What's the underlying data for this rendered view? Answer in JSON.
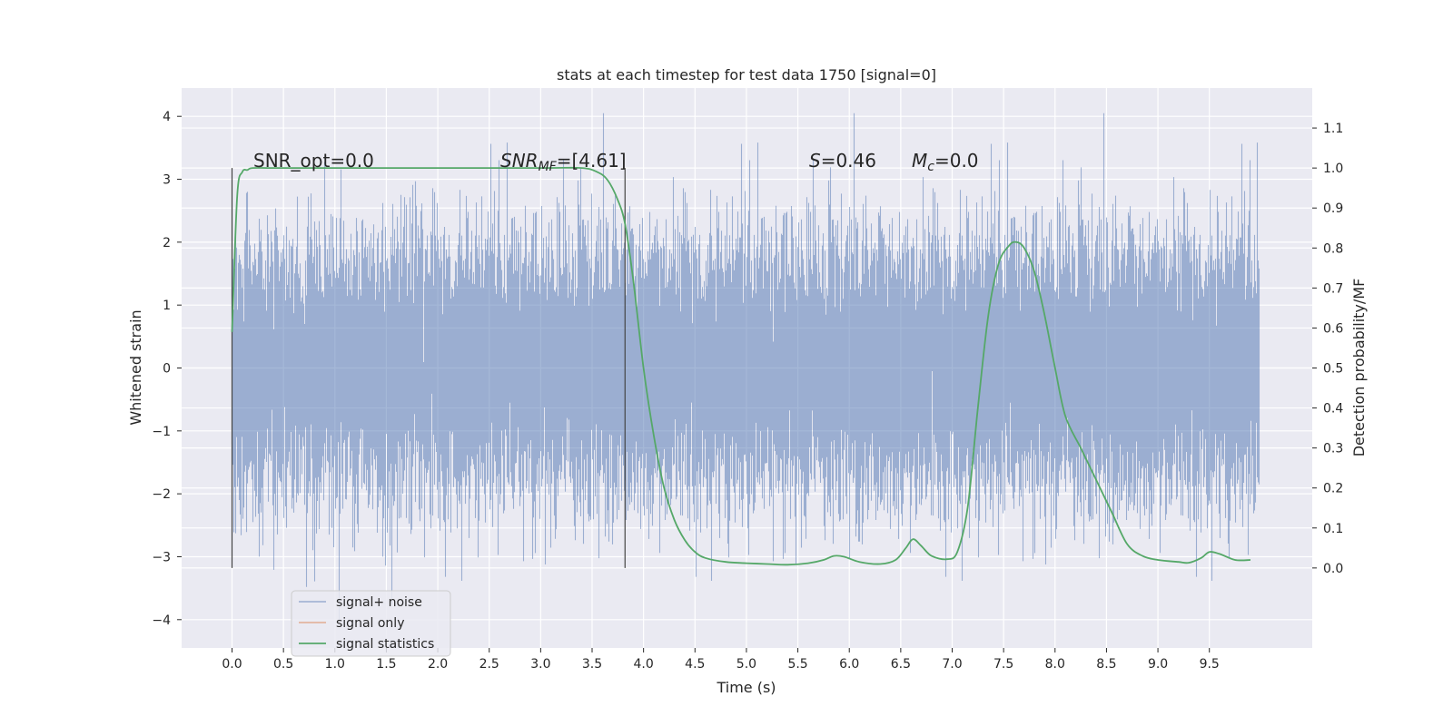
{
  "chart_data": {
    "type": "line",
    "title": "stats at each timestep for test data 1750 [signal=0]",
    "xlabel": "Time (s)",
    "ylabel_left": "Whitened strain",
    "ylabel_right": "Detection probability/MF",
    "xlim": [
      -0.49,
      10.5
    ],
    "ylim_left": [
      -4.45,
      4.45
    ],
    "ylim_right": [
      -0.2,
      1.2
    ],
    "x_ticks": [
      0.0,
      0.5,
      1.0,
      1.5,
      2.0,
      2.5,
      3.0,
      3.5,
      4.0,
      4.5,
      5.0,
      5.5,
      6.0,
      6.5,
      7.0,
      7.5,
      8.0,
      8.5,
      9.0,
      9.5
    ],
    "x_tick_labels": [
      "0.0",
      "0.5",
      "1.0",
      "1.5",
      "2.0",
      "2.5",
      "3.0",
      "3.5",
      "4.0",
      "4.5",
      "5.0",
      "5.5",
      "6.0",
      "6.5",
      "7.0",
      "7.5",
      "8.0",
      "8.5",
      "9.0",
      "9.5"
    ],
    "y_left_ticks": [
      4,
      3,
      2,
      1,
      0,
      -1,
      -2,
      -3,
      -4
    ],
    "y_left_tick_labels": [
      "4",
      "3",
      "2",
      "1",
      "0",
      "−1",
      "−2",
      "−3",
      "−4"
    ],
    "y_right_ticks": [
      1.1,
      1.0,
      0.9,
      0.8,
      0.7,
      0.6,
      0.5,
      0.4,
      0.3,
      0.2,
      0.1,
      0.0
    ],
    "y_right_tick_labels": [
      "1.1",
      "1.0",
      "0.9",
      "0.8",
      "0.7",
      "0.6",
      "0.5",
      "0.4",
      "0.3",
      "0.2",
      "0.1",
      "0.0"
    ],
    "grid": true,
    "legend_position": "lower-left",
    "annotations": {
      "snr_opt": "SNR_opt=0.0",
      "snr_mf_main": "SNR",
      "snr_mf_sub": "MF",
      "snr_mf_value": "=[4.61]",
      "s_main": "S",
      "s_value": "=0.46",
      "mc_main": "M",
      "mc_sub": "c",
      "mc_value": "=0.0"
    },
    "vertical_markers": [
      0.0,
      3.82
    ],
    "series": [
      {
        "name": "signal+ noise",
        "axis": "left",
        "color": "#4c72b0",
        "style": "noise",
        "x_range": [
          0.0,
          9.99
        ],
        "sample_rate_hz": 2048,
        "std": 1.0,
        "min": -4.05,
        "max": 4.05
      },
      {
        "name": "signal only",
        "axis": "left",
        "color": "#dd8452",
        "values": []
      },
      {
        "name": "signal statistics",
        "axis": "right",
        "color": "#55a868",
        "x": [
          0.0,
          0.05,
          0.1,
          0.15,
          0.2,
          0.4,
          1.0,
          2.0,
          3.0,
          3.4,
          3.55,
          3.65,
          3.75,
          3.82,
          3.9,
          4.0,
          4.1,
          4.2,
          4.3,
          4.4,
          4.5,
          4.6,
          4.8,
          5.0,
          5.2,
          5.4,
          5.6,
          5.75,
          5.85,
          5.95,
          6.1,
          6.3,
          6.45,
          6.55,
          6.62,
          6.7,
          6.8,
          6.95,
          7.05,
          7.15,
          7.25,
          7.35,
          7.45,
          7.55,
          7.62,
          7.7,
          7.8,
          7.9,
          8.0,
          8.1,
          8.25,
          8.4,
          8.55,
          8.7,
          8.85,
          9.0,
          9.2,
          9.3,
          9.42,
          9.5,
          9.6,
          9.75,
          9.9
        ],
        "values": [
          0.59,
          0.93,
          0.99,
          0.995,
          1.0,
          1.0,
          1.0,
          1.0,
          1.0,
          1.0,
          0.99,
          0.97,
          0.92,
          0.86,
          0.72,
          0.5,
          0.33,
          0.2,
          0.12,
          0.07,
          0.04,
          0.025,
          0.015,
          0.012,
          0.01,
          0.008,
          0.012,
          0.02,
          0.03,
          0.028,
          0.015,
          0.01,
          0.02,
          0.05,
          0.072,
          0.055,
          0.03,
          0.022,
          0.04,
          0.15,
          0.4,
          0.63,
          0.76,
          0.805,
          0.815,
          0.8,
          0.74,
          0.63,
          0.5,
          0.38,
          0.3,
          0.22,
          0.14,
          0.06,
          0.03,
          0.02,
          0.015,
          0.013,
          0.025,
          0.04,
          0.035,
          0.02,
          0.02
        ]
      }
    ]
  }
}
